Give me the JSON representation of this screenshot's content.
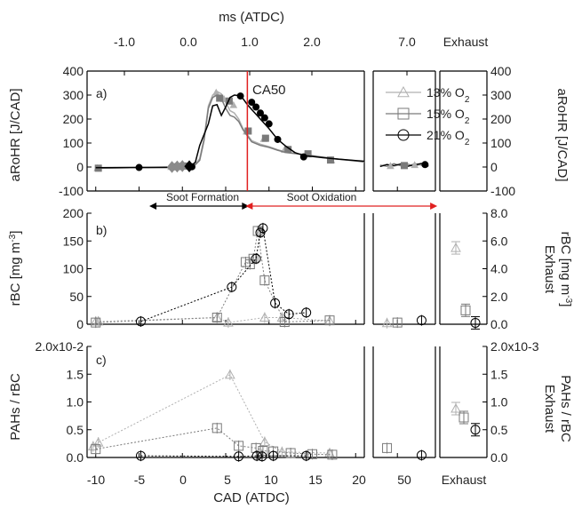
{
  "top_axis": {
    "label": "ms (ATDC)",
    "ticks": [
      "-1.0",
      "0.0",
      "1.0",
      "2.0",
      "7.0",
      "Exhaust"
    ]
  },
  "bottom_axis": {
    "label": "CAD (ATDC)",
    "ticks": [
      "-10",
      "-5",
      "0",
      "5",
      "10",
      "15",
      "20",
      "50",
      "Exhaust"
    ]
  },
  "annotations": {
    "ca50": "CA50",
    "soot_formation": "Soot Formation",
    "soot_oxidation": "Soot Oxidation"
  },
  "legend": {
    "placement": "top-right of panel a",
    "entries": [
      {
        "label": "13% O2",
        "marker": "triangle",
        "color": "#b0b0b0"
      },
      {
        "label": "15% O2",
        "marker": "square",
        "color": "#7a7a7a"
      },
      {
        "label": "21% O2",
        "marker": "circle",
        "color": "#000000"
      }
    ]
  },
  "colors": {
    "o2_13": "#b0b0b0",
    "o2_15": "#7a7a7a",
    "o2_21": "#000000",
    "ca50_line": "#e02020",
    "oxidation_arrow": "#e02020"
  },
  "chart_data": [
    {
      "type": "line",
      "panel": "a)",
      "ylabel_left": "aRoHR [J/CAD]",
      "ylabel_right": "aRoHR [J/CAD]",
      "ylim": [
        -100,
        400
      ],
      "yticks": [
        "-100",
        "0",
        "100",
        "200",
        "300",
        "400"
      ],
      "xlabel": "CAD (ATDC)",
      "ca50_cad": 7.5,
      "series": [
        {
          "name": "13% O2",
          "x": [
            -10,
            -6,
            -4,
            -2,
            -1,
            0,
            1,
            1.5,
            2,
            2.5,
            3,
            3.5,
            4,
            4.5,
            5,
            5.5,
            6,
            6.5,
            7,
            8,
            9,
            10,
            11,
            12,
            14,
            16,
            18,
            20,
            21
          ],
          "y": [
            -5,
            -3,
            -2,
            -3,
            -2,
            0,
            5,
            12,
            35,
            120,
            255,
            300,
            315,
            305,
            270,
            235,
            225,
            200,
            160,
            110,
            95,
            85,
            72,
            62,
            52,
            40,
            32,
            25,
            20
          ],
          "markers": [
            [
              -9.8,
              -5
            ],
            [
              -1.3,
              0
            ],
            [
              -0.8,
              2
            ],
            [
              -0.3,
              3
            ],
            [
              0.3,
              4
            ],
            [
              3.9,
              310
            ],
            [
              4.8,
              283
            ],
            [
              5.9,
              258
            ],
            [
              7.4,
              148
            ],
            [
              9.4,
              117
            ],
            [
              11.8,
              72
            ],
            [
              14.3,
              54
            ],
            [
              17.2,
              28
            ]
          ]
        },
        {
          "name": "15% O2",
          "x": [
            -10,
            -6,
            -4,
            -2,
            -1,
            0,
            1,
            1.5,
            2,
            2.5,
            3,
            3.5,
            4,
            4.5,
            5,
            5.5,
            6,
            6.5,
            7,
            8,
            9,
            10,
            11,
            12,
            14,
            16,
            18,
            20,
            21
          ],
          "y": [
            -5,
            -3,
            -2,
            -3,
            -2,
            0,
            4,
            10,
            28,
            110,
            245,
            290,
            300,
            285,
            245,
            215,
            208,
            190,
            155,
            105,
            90,
            82,
            70,
            60,
            52,
            42,
            33,
            26,
            22
          ],
          "markers": [
            [
              -9.7,
              -5
            ],
            [
              -1.0,
              1
            ],
            [
              -0.2,
              2
            ],
            [
              0.4,
              4
            ],
            [
              4.3,
              287
            ],
            [
              5.4,
              275
            ],
            [
              7.6,
              150
            ],
            [
              9.6,
              120
            ],
            [
              12.2,
              73
            ],
            [
              14.5,
              55
            ],
            [
              17.1,
              29
            ]
          ]
        },
        {
          "name": "21% O2",
          "x": [
            -10,
            -6,
            -4,
            -2,
            0,
            1,
            1.5,
            2,
            3,
            3.5,
            4,
            4.5,
            5,
            5.5,
            6,
            6.5,
            7,
            7.5,
            8,
            9,
            10,
            11,
            12,
            13,
            14,
            16,
            18,
            20,
            21
          ],
          "y": [
            -3,
            -2,
            -2,
            -1,
            0,
            5,
            20,
            90,
            180,
            255,
            260,
            215,
            250,
            290,
            300,
            298,
            285,
            260,
            240,
            200,
            160,
            115,
            85,
            60,
            48,
            40,
            33,
            27,
            24
          ],
          "markers": [
            [
              -5,
              -2
            ],
            [
              1.1,
              1
            ],
            [
              6.7,
              296
            ],
            [
              8.0,
              270
            ],
            [
              8.5,
              250
            ],
            [
              9.0,
              225
            ],
            [
              9.5,
              205
            ],
            [
              10.0,
              180
            ],
            [
              11.0,
              115
            ],
            [
              14.0,
              42
            ]
          ]
        }
      ],
      "window_50": {
        "x": [
          45,
          47,
          49,
          51,
          53,
          55,
          57,
          59
        ],
        "y_13": [
          5,
          12,
          3,
          10,
          4,
          15,
          6,
          2
        ],
        "y_15": [
          8,
          3,
          14,
          5,
          12,
          4,
          13,
          6
        ],
        "y_21": [
          2,
          10,
          6,
          13,
          3,
          9,
          15,
          4
        ],
        "markers_13": [
          [
            48,
            4
          ],
          [
            55,
            8
          ]
        ],
        "markers_15": [
          [
            52,
            6
          ]
        ],
        "markers_21": [
          [
            58,
            10
          ]
        ]
      }
    },
    {
      "type": "scatter",
      "panel": "b)",
      "ylabel_left": "rBC [mg m-3]",
      "ylabel_right": "Exhaust rBC [mg m-3]",
      "ylim": [
        0,
        200
      ],
      "yticks": [
        "0",
        "50",
        "100",
        "150",
        "200"
      ],
      "ylim_right": [
        0,
        8.0
      ],
      "yticks_right": [
        "0.0",
        "2.0",
        "4.0",
        "6.0",
        "8.0"
      ],
      "series": [
        {
          "name": "13% O2",
          "points": [
            [
              -10,
              5
            ],
            [
              -9.7,
              5
            ],
            [
              4,
              12
            ],
            [
              5.3,
              3
            ],
            [
              9.5,
              12
            ],
            [
              11.5,
              12
            ],
            [
              17,
              6
            ],
            [
              47,
              2
            ]
          ],
          "exhaust_right": 5.5
        },
        {
          "name": "15% O2",
          "points": [
            [
              -10,
              3
            ],
            [
              4,
              12
            ],
            [
              7.3,
              112
            ],
            [
              7.8,
              108
            ],
            [
              8.2,
              118
            ],
            [
              8.7,
              168
            ],
            [
              9.5,
              79
            ],
            [
              11.8,
              4
            ],
            [
              17,
              7
            ],
            [
              50,
              3
            ]
          ],
          "exhaust_right": 1.0
        },
        {
          "name": "21% O2",
          "points": [
            [
              -4.8,
              5
            ],
            [
              5.7,
              67
            ],
            [
              8.5,
              118
            ],
            [
              9.0,
              165
            ],
            [
              9.3,
              173
            ],
            [
              10.7,
              38
            ],
            [
              12.3,
              18
            ],
            [
              14.3,
              21
            ],
            [
              57,
              7
            ]
          ],
          "exhaust_right": 0.1
        }
      ]
    },
    {
      "type": "scatter",
      "panel": "c)",
      "ylabel_left": "PAHs / rBC",
      "ylabel_right": "Exhaust PAHs / rBC",
      "ylim": [
        0,
        0.02
      ],
      "yticks": [
        "0.0",
        "0.5",
        "1.0",
        "1.5",
        "2.0x10-2"
      ],
      "ylim_right": [
        0,
        0.002
      ],
      "yticks_right": [
        "0.0",
        "0.5",
        "1.0",
        "1.5",
        "2.0x10-3"
      ],
      "series": [
        {
          "name": "13% O2",
          "points": [
            [
              -10.3,
              0.002
            ],
            [
              -9.7,
              0.0027
            ],
            [
              5.5,
              0.0149
            ],
            [
              9.5,
              0.0028
            ],
            [
              11.5,
              0.001
            ],
            [
              17,
              0.0008
            ]
          ],
          "exhaust_right": 0.00088
        },
        {
          "name": "15% O2",
          "points": [
            [
              -10,
              0.0015
            ],
            [
              4,
              0.0053
            ],
            [
              6.5,
              0.0021
            ],
            [
              8.5,
              0.0017
            ],
            [
              9.3,
              0.0012
            ],
            [
              10.5,
              0.0011
            ],
            [
              12.5,
              0.0008
            ],
            [
              15,
              0.0006
            ],
            [
              17.3,
              0.0005
            ],
            [
              47,
              0.0017
            ]
          ],
          "exhaust_right": 0.00072
        },
        {
          "name": "21% O2",
          "points": [
            [
              -4.8,
              0.0003
            ],
            [
              6.5,
              0.0002
            ],
            [
              8.6,
              0.0003
            ],
            [
              9.2,
              0.0002
            ],
            [
              10.5,
              0.0003
            ],
            [
              14.3,
              0.0003
            ],
            [
              57,
              0.0004
            ]
          ],
          "exhaust_right": 0.0005
        }
      ]
    }
  ]
}
